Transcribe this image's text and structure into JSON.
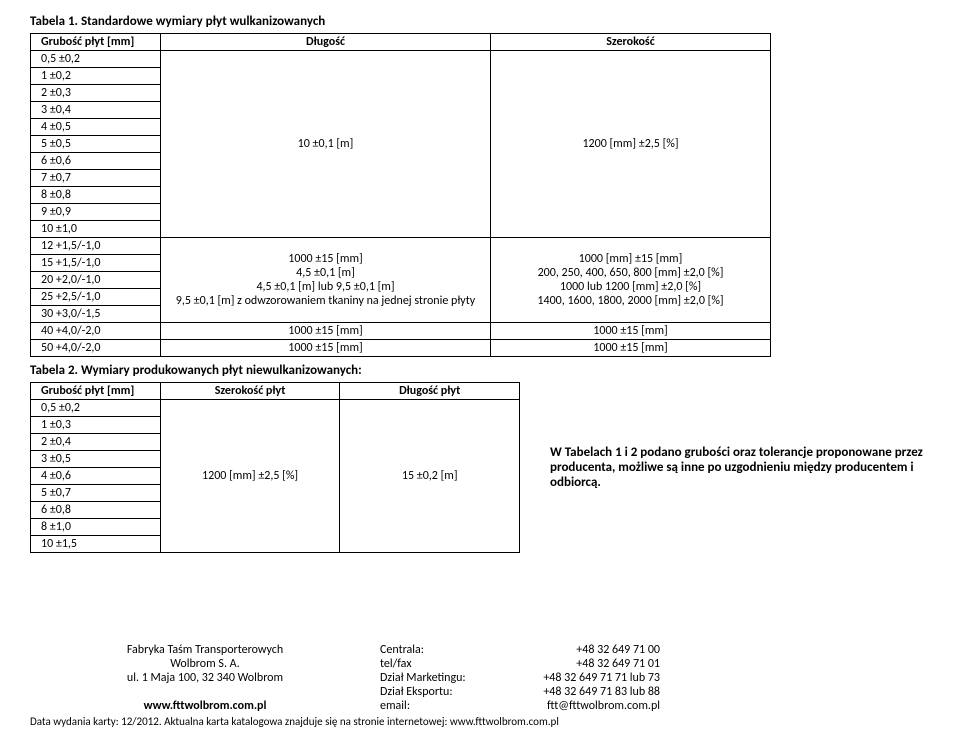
{
  "table1": {
    "title": "Tabela 1. Standardowe wymiary płyt wulkanizowanych",
    "headers": [
      "Grubość płyt [mm]",
      "Długość",
      "Szerokość"
    ],
    "block_a": {
      "col1": [
        "0,5 ±0,2",
        "1 ±0,2",
        "2 ±0,3",
        "3 ±0,4",
        "4 ±0,5",
        "5 ±0,5",
        "6 ±0,6",
        "7 ±0,7",
        "8 ±0,8",
        "9 ±0,9",
        "10 ±1,0"
      ],
      "col2": "10 ±0,1 [m]",
      "col3": "1200 [mm] ±2,5 [%]"
    },
    "block_b": {
      "col1": [
        "12 +1,5/-1,0",
        "15 +1,5/-1,0",
        "20 +2,0/-1,0",
        "25 +2,5/-1,0",
        "30 +3,0/-1,5"
      ],
      "col2_lines": [
        "1000 ±15 [mm]",
        "4,5 ±0,1 [m]",
        "4,5 ±0,1 [m] lub 9,5 ±0,1 [m]",
        "9,5 ±0,1 [m] z odwzorowaniem tkaniny na jednej stronie płyty"
      ],
      "col3_lines": [
        "1000 [mm] ±15 [mm]",
        "200, 250, 400, 650, 800 [mm] ±2,0 [%]",
        "1000 lub 1200 [mm] ±2,0 [%]",
        "1400, 1600, 1800, 2000 [mm] ±2,0 [%]"
      ]
    },
    "last_rows": [
      {
        "c1": "40 +4,0/-2,0",
        "c2": "1000 ±15 [mm]",
        "c3": "1000 ±15 [mm]"
      },
      {
        "c1": "50 +4,0/-2,0",
        "c2": "1000 ±15 [mm]",
        "c3": "1000 ±15 [mm]"
      }
    ]
  },
  "table2": {
    "title": "Tabela 2. Wymiary produkowanych płyt niewulkanizowanych:",
    "headers": [
      "Grubość płyt [mm]",
      "Szerokość płyt",
      "Długość płyt"
    ],
    "col1": [
      "0,5 ±0,2",
      "1 ±0,3",
      "2 ±0,4",
      "3 ±0,5",
      "4 ±0,6",
      "5 ±0,7",
      "6 ±0,8",
      "8 ±1,0",
      "10 ±1,5"
    ],
    "col2": "1200 [mm] ±2,5 [%]",
    "col3": "15 ±0,2 [m]"
  },
  "note": "W Tabelach 1 i 2 podano grubości oraz tolerancje proponowane przez producenta, możliwe są inne po uzgodnieniu między producentem i odbiorcą.",
  "footer": {
    "l1": "Fabryka Taśm Transporterowych",
    "l2": "Wolbrom S. A.",
    "l3": "ul. 1 Maja 100, 32 340 Wolbrom",
    "l4": "www.fttwolbrom.com.pl",
    "r": [
      {
        "label": "Centrala:",
        "val": "+48 32 649 71 00"
      },
      {
        "label": "tel/fax",
        "val": "+48 32 649 71 01"
      },
      {
        "label": "Dział Marketingu:",
        "val": "+48 32 649 71 71 lub 73"
      },
      {
        "label": "Dział Eksportu:",
        "val": "+48 32 649 71 83 lub 88"
      },
      {
        "label": "email:",
        "val": "ftt@fttwolbrom.com.pl"
      }
    ],
    "note": "Data wydania karty: 12/2012. Aktualna karta katalogowa znajduje się na stronie internetowej: www.fttwolbrom.com.pl"
  }
}
